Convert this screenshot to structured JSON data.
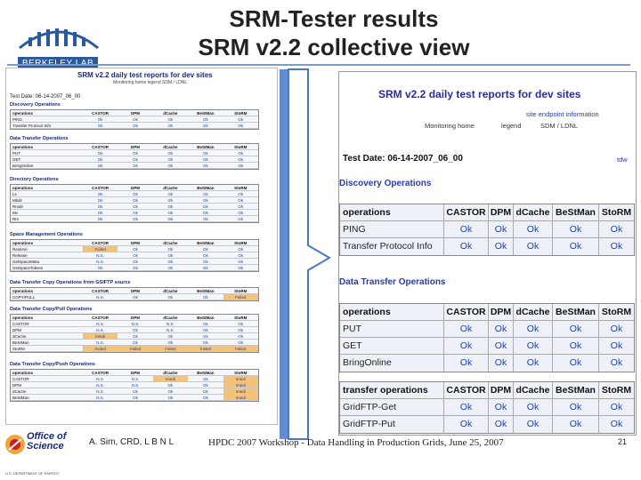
{
  "header": {
    "title_line1": "SRM-Tester results",
    "title_line2": "SRM v2.2 collective view",
    "logo_text": "BERKELEY LAB"
  },
  "thumbnail": {
    "title": "SRM v2.2 daily test reports for dev sites",
    "sub_links": "Monitoring home   legend   SDM / LDNL",
    "date": "Test Date: 06-14-2007_06_00",
    "sections": [
      {
        "label": "Discovery Operations",
        "rows": [
          [
            "operations",
            "CASTOR",
            "DPM",
            "dCache",
            "BeStMan",
            "StoRM"
          ],
          [
            "PING",
            "Ok",
            "Ok",
            "Ok",
            "Ok",
            "Ok"
          ],
          [
            "Transfer Protocol Info",
            "Ok",
            "Ok",
            "Ok",
            "Ok",
            "Ok"
          ]
        ]
      },
      {
        "label": "Data Transfer Operations",
        "rows": [
          [
            "operations",
            "CASTOR",
            "DPM",
            "dCache",
            "BeStMan",
            "StoRM"
          ],
          [
            "PUT",
            "Ok",
            "Ok",
            "Ok",
            "Ok",
            "Ok"
          ],
          [
            "GET",
            "Ok",
            "Ok",
            "Ok",
            "Ok",
            "Ok"
          ],
          [
            "BringOnline",
            "Ok",
            "Ok",
            "Ok",
            "Ok",
            "Ok"
          ]
        ]
      },
      {
        "label": "Directory Operations",
        "rows": [
          [
            "operations",
            "CASTOR",
            "DPM",
            "dCache",
            "BeStMan",
            "StoRM"
          ],
          [
            "Ls",
            "Ok",
            "Ok",
            "Ok",
            "Ok",
            "Ok"
          ],
          [
            "Mkdir",
            "Ok",
            "Ok",
            "Ok",
            "Ok",
            "Ok"
          ],
          [
            "Rmdir",
            "Ok",
            "Ok",
            "Ok",
            "Ok",
            "Ok"
          ],
          [
            "Mv",
            "Ok",
            "Ok",
            "Ok",
            "Ok",
            "Ok"
          ],
          [
            "Rm",
            "Ok",
            "Ok",
            "Ok",
            "Ok",
            "Ok"
          ]
        ]
      },
      {
        "label": "Space Management Operations",
        "rows": [
          [
            "operations",
            "CASTOR",
            "DPM",
            "dCache",
            "BeStMan",
            "StoRM"
          ],
          [
            "Reserve",
            "Failed",
            "Ok",
            "Ok",
            "Ok",
            "Ok"
          ],
          [
            "Release",
            "N.S.",
            "Ok",
            "Ok",
            "Ok",
            "Ok"
          ],
          [
            "GetSpaceMeta",
            "N.S.",
            "Ok",
            "Ok",
            "Ok",
            "Ok"
          ],
          [
            "GetSpaceTokens",
            "Ok",
            "Ok",
            "Ok",
            "Ok",
            "Ok"
          ]
        ]
      },
      {
        "label": "Data Transfer Copy Operations from GSIFTP source",
        "rows": [
          [
            "operations",
            "CASTOR",
            "DPM",
            "dCache",
            "BeStMan",
            "StoRM"
          ],
          [
            "COPY/PULL",
            "N.S.",
            "Ok",
            "Ok",
            "Ok",
            "Failed"
          ]
        ]
      },
      {
        "label": "Data Transfer Copy/Pull Operations",
        "rows": [
          [
            "operations",
            "CASTOR",
            "DPM",
            "dCache",
            "BeStMan",
            "StoRM"
          ],
          [
            "CASTOR",
            "N.S.",
            "N.S.",
            "N.S.",
            "Ok",
            "Ok"
          ],
          [
            "DPM",
            "N.S.",
            "Ok",
            "N.S.",
            "Ok",
            "Ok"
          ],
          [
            "dCache",
            "Imedi",
            "Ok",
            "Ok",
            "Ok",
            "Ok"
          ],
          [
            "BeStMan",
            "N.S.",
            "Ok",
            "Ok",
            "Ok",
            "Ok"
          ],
          [
            "StoRM",
            "Failed",
            "Failed",
            "Failed",
            "Failed",
            "Failed"
          ]
        ]
      },
      {
        "label": "Data Transfer Copy/Push Operations",
        "rows": [
          [
            "operations",
            "CASTOR",
            "DPM",
            "dCache",
            "BeStMan",
            "StoRM"
          ],
          [
            "CASTOR",
            "N.S.",
            "N.S.",
            "Imedi",
            "Ok",
            "Imedi"
          ],
          [
            "DPM",
            "N.S.",
            "N.S.",
            "Ok",
            "Ok",
            "Imedi"
          ],
          [
            "dCache",
            "N.S.",
            "Ok",
            "Ok",
            "Ok",
            "Imedi"
          ],
          [
            "BeStMan",
            "N.S.",
            "Ok",
            "Ok",
            "Ok",
            "Imedi"
          ]
        ]
      }
    ]
  },
  "zoom": {
    "title": "SRM v2.2 daily test reports for dev sites",
    "link_site_endpoint": "site endpoint information",
    "monitoring_home": "Monitoring home",
    "legend": "legend",
    "sdm_ldnl": "SDM / LDNL",
    "date": "Test Date: 06-14-2007_06_00",
    "tdw": "tdw",
    "discovery": {
      "label": "Discovery Operations",
      "rows": [
        [
          "operations",
          "CASTOR",
          "DPM",
          "dCache",
          "BeStMan",
          "StoRM"
        ],
        [
          "PING",
          "Ok",
          "Ok",
          "Ok",
          "Ok",
          "Ok"
        ],
        [
          "Transfer Protocol Info",
          "Ok",
          "Ok",
          "Ok",
          "Ok",
          "Ok"
        ]
      ]
    },
    "transfer": {
      "label": "Data Transfer Operations",
      "rows": [
        [
          "operations",
          "CASTOR",
          "DPM",
          "dCache",
          "BeStMan",
          "StoRM"
        ],
        [
          "PUT",
          "Ok",
          "Ok",
          "Ok",
          "Ok",
          "Ok"
        ],
        [
          "GET",
          "Ok",
          "Ok",
          "Ok",
          "Ok",
          "Ok"
        ],
        [
          "BringOnline",
          "Ok",
          "Ok",
          "Ok",
          "Ok",
          "Ok"
        ]
      ]
    },
    "transfer2": {
      "rows": [
        [
          "transfer operations",
          "CASTOR",
          "DPM",
          "dCache",
          "BeStMan",
          "StoRM"
        ],
        [
          "GridFTP-Get",
          "Ok",
          "Ok",
          "Ok",
          "Ok",
          "Ok"
        ],
        [
          "GridFTP-Put",
          "Ok",
          "Ok",
          "Ok",
          "Ok",
          "Ok"
        ]
      ]
    }
  },
  "footer": {
    "office_line1": "Office of",
    "office_line2": "Science",
    "doe": "U.S. DEPARTMENT OF ENERGY",
    "author": "A. Sim, CRD, L B N L",
    "workshop": "HPDC 2007 Workshop - Data Handling in Production Grids, June 25, 2007",
    "page": "21"
  },
  "colors": {
    "accent": "#2a3ca8",
    "failed": "#f5c27a",
    "rule": "#7a9cc8"
  }
}
